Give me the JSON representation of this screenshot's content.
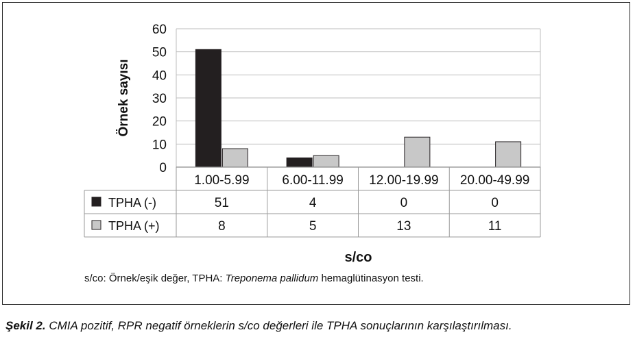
{
  "chart_data": {
    "type": "bar",
    "categories": [
      "1.00-5.99",
      "6.00-11.99",
      "12.00-19.99",
      "20.00-49.99"
    ],
    "series": [
      {
        "name": "TPHA (-)",
        "values": [
          51,
          4,
          0,
          0
        ],
        "color": "#231f20",
        "table_values": [
          "51",
          "4",
          "0",
          "0"
        ]
      },
      {
        "name": "TPHA (+)",
        "values": [
          8,
          5,
          13,
          11
        ],
        "color": "#c8c8c8",
        "table_values": [
          "8",
          "5",
          "13",
          "11"
        ]
      }
    ],
    "ylim": [
      0,
      60
    ],
    "yticks": [
      0,
      10,
      20,
      30,
      40,
      50,
      60
    ],
    "ylabel": "Örnek sayısı",
    "xlabel": "s/co",
    "grid": true,
    "legend": "data-table"
  },
  "note": {
    "prefix": "s/co: Örnek/eşik değer, TPHA: ",
    "italic": "Treponema pallidum",
    "suffix": " hemaglütinasyon testi."
  },
  "caption": {
    "label": "Şekil 2.",
    "text": " CMIA pozitif, RPR negatif örneklerin s/co değerleri ile TPHA sonuçlarının karşılaştırılması."
  }
}
